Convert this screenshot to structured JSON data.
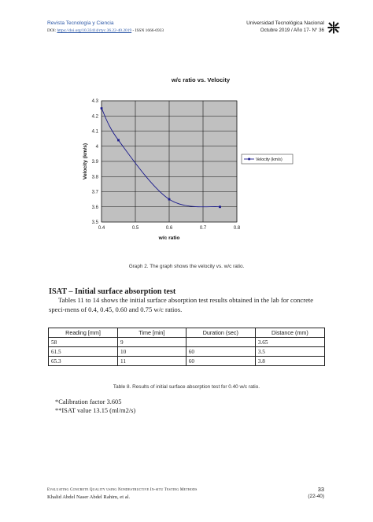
{
  "header": {
    "journal": "Revista Tecnología y Ciencia",
    "doi_prefix": "DOI:",
    "doi_link": "https://doi.org/10.33414/rtyc.36.22-40.2019",
    "issn": "- ISSN 1666-6933",
    "university": "Universidad Tecnológica Nacional",
    "issue": "Octubre 2019 / Año 17- N° 36",
    "logo_icon": "utn-logo-icon"
  },
  "chart_data": {
    "type": "line",
    "title": "w/c ratio vs. Velocity",
    "xlabel": "w/c ratio",
    "ylabel": "Velocity (km/s)",
    "xlim": [
      0.4,
      0.8
    ],
    "ylim": [
      3.5,
      4.3
    ],
    "xticks": [
      "0.4",
      "0.5",
      "0.6",
      "0.7",
      "0.8"
    ],
    "yticks": [
      "3.5",
      "3.6",
      "3.7",
      "3.8",
      "3.9",
      "4",
      "4.1",
      "4.2",
      "4.3"
    ],
    "grid": true,
    "legend_position": "right",
    "series": [
      {
        "name": "Velocity (km/s)",
        "color": "#1a1a8c",
        "x": [
          0.4,
          0.45,
          0.6,
          0.75
        ],
        "y": [
          4.25,
          4.04,
          3.65,
          3.6
        ]
      }
    ]
  },
  "graph_caption": "Graph 2. The graph shows the velocity vs. w/c ratio.",
  "section": {
    "title": "ISAT – Initial surface absorption test",
    "paragraph": "Tables 11 to 14 shows the initial surface absorption test results obtained in the lab for concrete speci-mens of 0.4, 0.45, 0.60 and 0.75 w/c ratios."
  },
  "table": {
    "headers": [
      "Reading [mm]",
      "Time [min]",
      "Duration (sec)",
      "Distance (mm)"
    ],
    "rows": [
      [
        "58",
        "9",
        "",
        "3.65"
      ],
      [
        "61.5",
        "10",
        "60",
        "3.5"
      ],
      [
        "65.3",
        "11",
        "60",
        "3.8"
      ]
    ],
    "caption": "Table 8. Results of initial surface absorption test for 0.40 w/c ratio."
  },
  "notes": {
    "calibration": "*Calibration factor 3.605",
    "isat": "**ISAT value 13.15 (ml/m2/s)"
  },
  "footer": {
    "article_title": "Evaluating Concrete Quality using Nondestructive In-situ Testing Methods",
    "authors": "Khalid Abdel Naser Abdel Rahim, et al.",
    "page_number": "33",
    "page_range": "(22-40)"
  }
}
